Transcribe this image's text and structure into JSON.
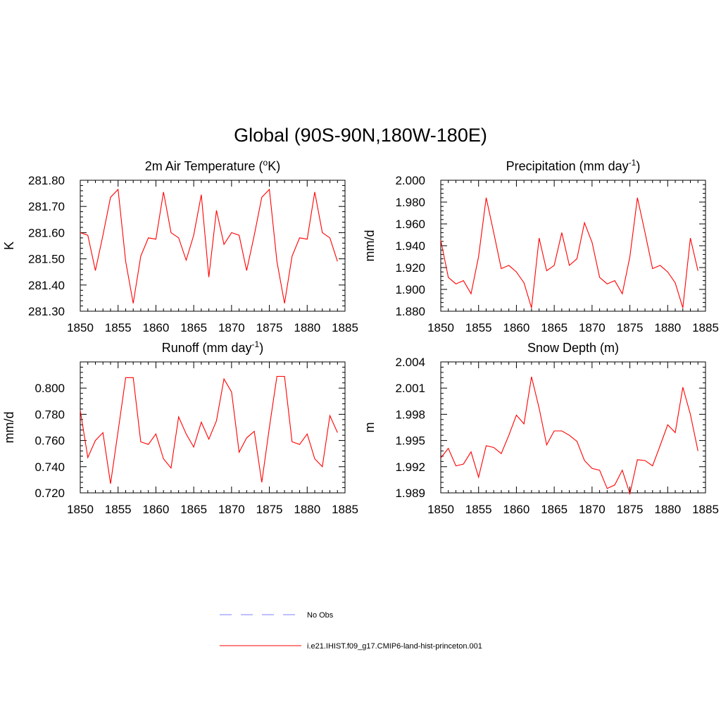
{
  "figure": {
    "title": "Global (90S-90N,180W-180E)"
  },
  "legend": [
    {
      "label": "No Obs",
      "color": "#9999ff",
      "dash": true
    },
    {
      "label": "i.e21.IHIST.f09_g17.CMIP6-land-hist-princeton.001",
      "color": "#ff0000",
      "dash": false
    }
  ],
  "chart_data": [
    {
      "type": "line",
      "title": "2m Air Temperature (",
      "title_sup": "o",
      "title_after": "K)",
      "ylabel": "K",
      "xlim": [
        1850,
        1885
      ],
      "ylim": [
        281.3,
        281.8
      ],
      "yticks": [
        281.3,
        281.4,
        281.5,
        281.6,
        281.7,
        281.8
      ],
      "ytick_labels": [
        "281.30",
        "281.40",
        "281.50",
        "281.60",
        "281.70",
        "281.80"
      ],
      "xticks": [
        1850,
        1855,
        1860,
        1865,
        1870,
        1875,
        1880,
        1885
      ],
      "series": [
        {
          "color": "#ff0000",
          "x": [
            1850,
            1851,
            1852,
            1853,
            1854,
            1855,
            1856,
            1857,
            1858,
            1859,
            1860,
            1861,
            1862,
            1863,
            1864,
            1865,
            1866,
            1867,
            1868,
            1869,
            1870,
            1871,
            1872,
            1873,
            1874,
            1875,
            1876,
            1877,
            1878,
            1879,
            1880,
            1881,
            1882,
            1883,
            1884
          ],
          "y": [
            281.6,
            281.59,
            281.455,
            281.59,
            281.735,
            281.765,
            281.49,
            281.33,
            281.51,
            281.58,
            281.575,
            281.755,
            281.6,
            281.58,
            281.495,
            281.59,
            281.745,
            281.43,
            281.685,
            281.555,
            281.6,
            281.59,
            281.455,
            281.59,
            281.735,
            281.765,
            281.49,
            281.33,
            281.51,
            281.58,
            281.575,
            281.755,
            281.6,
            281.58,
            281.49
          ]
        }
      ]
    },
    {
      "type": "line",
      "title": "Precipitation (mm day",
      "title_sup": "-1",
      "title_after": ")",
      "ylabel": "mm/d",
      "xlim": [
        1850,
        1885
      ],
      "ylim": [
        1.88,
        2.0
      ],
      "yticks": [
        1.88,
        1.9,
        1.92,
        1.94,
        1.96,
        1.98,
        2.0
      ],
      "ytick_labels": [
        "1.880",
        "1.900",
        "1.920",
        "1.940",
        "1.960",
        "1.980",
        "2.000"
      ],
      "xticks": [
        1850,
        1855,
        1860,
        1865,
        1870,
        1875,
        1880,
        1885
      ],
      "series": [
        {
          "color": "#ff0000",
          "x": [
            1850,
            1851,
            1852,
            1853,
            1854,
            1855,
            1856,
            1857,
            1858,
            1859,
            1860,
            1861,
            1862,
            1863,
            1864,
            1865,
            1866,
            1867,
            1868,
            1869,
            1870,
            1871,
            1872,
            1873,
            1874,
            1875,
            1876,
            1877,
            1878,
            1879,
            1880,
            1881,
            1882,
            1883,
            1884
          ],
          "y": [
            1.945,
            1.911,
            1.905,
            1.908,
            1.896,
            1.93,
            1.984,
            1.952,
            1.919,
            1.922,
            1.916,
            1.906,
            1.883,
            1.947,
            1.917,
            1.922,
            1.952,
            1.922,
            1.928,
            1.961,
            1.943,
            1.911,
            1.905,
            1.908,
            1.896,
            1.93,
            1.984,
            1.952,
            1.919,
            1.922,
            1.916,
            1.906,
            1.883,
            1.947,
            1.917
          ]
        }
      ]
    },
    {
      "type": "line",
      "title": "Runoff (mm day",
      "title_sup": "-1",
      "title_after": ")",
      "ylabel": "mm/d",
      "xlim": [
        1850,
        1885
      ],
      "ylim": [
        0.72,
        0.82
      ],
      "yticks": [
        0.72,
        0.74,
        0.76,
        0.78,
        0.8
      ],
      "ytick_labels": [
        "0.720",
        "0.740",
        "0.760",
        "0.780",
        "0.800"
      ],
      "xticks": [
        1850,
        1855,
        1860,
        1865,
        1870,
        1875,
        1880,
        1885
      ],
      "series": [
        {
          "color": "#ff0000",
          "x": [
            1850,
            1851,
            1852,
            1853,
            1854,
            1855,
            1856,
            1857,
            1858,
            1859,
            1860,
            1861,
            1862,
            1863,
            1864,
            1865,
            1866,
            1867,
            1868,
            1869,
            1870,
            1871,
            1872,
            1873,
            1874,
            1875,
            1876,
            1877,
            1878,
            1879,
            1880,
            1881,
            1882,
            1883,
            1884
          ],
          "y": [
            0.783,
            0.747,
            0.76,
            0.766,
            0.727,
            0.767,
            0.808,
            0.808,
            0.759,
            0.757,
            0.765,
            0.746,
            0.739,
            0.778,
            0.765,
            0.755,
            0.774,
            0.761,
            0.775,
            0.807,
            0.797,
            0.751,
            0.762,
            0.767,
            0.728,
            0.77,
            0.809,
            0.809,
            0.759,
            0.757,
            0.765,
            0.746,
            0.74,
            0.779,
            0.766
          ]
        }
      ]
    },
    {
      "type": "line",
      "title": "Snow Depth (m)",
      "title_sup": "",
      "title_after": "",
      "ylabel": "m",
      "xlim": [
        1850,
        1885
      ],
      "ylim": [
        1.989,
        2.004
      ],
      "yticks": [
        1.989,
        1.992,
        1.995,
        1.998,
        2.001,
        2.004
      ],
      "ytick_labels": [
        "1.989",
        "1.992",
        "1.995",
        "1.998",
        "2.001",
        "2.004"
      ],
      "xticks": [
        1850,
        1855,
        1860,
        1865,
        1870,
        1875,
        1880,
        1885
      ],
      "series": [
        {
          "color": "#ff0000",
          "x": [
            1850,
            1851,
            1852,
            1853,
            1854,
            1855,
            1856,
            1857,
            1858,
            1859,
            1860,
            1861,
            1862,
            1863,
            1864,
            1865,
            1866,
            1867,
            1868,
            1869,
            1870,
            1871,
            1872,
            1873,
            1874,
            1875,
            1876,
            1877,
            1878,
            1879,
            1880,
            1881,
            1882,
            1883,
            1884
          ],
          "y": [
            1.993,
            1.9941,
            1.9921,
            1.9923,
            1.9937,
            1.9908,
            1.9944,
            1.9942,
            1.9935,
            1.9956,
            1.9979,
            1.9969,
            2.0023,
            1.9987,
            1.9945,
            1.9961,
            1.9961,
            1.9956,
            1.9949,
            1.9927,
            1.9918,
            1.9916,
            1.9895,
            1.9899,
            1.9916,
            1.9889,
            1.9928,
            1.9927,
            1.9921,
            1.9944,
            1.9968,
            1.9959,
            2.0011,
            1.998,
            1.9938
          ]
        }
      ]
    }
  ]
}
